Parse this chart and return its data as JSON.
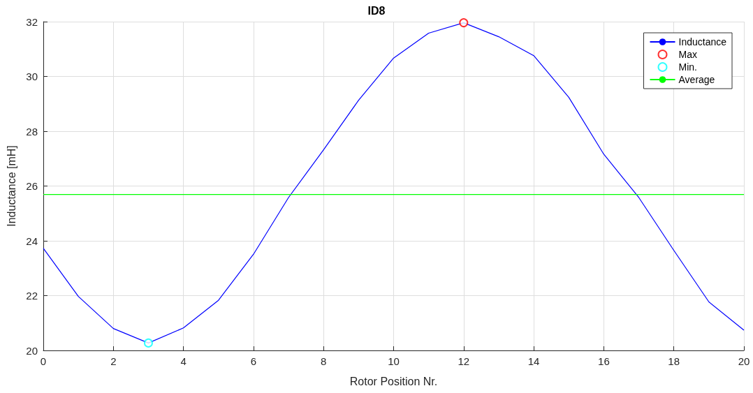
{
  "chart_data": {
    "type": "line",
    "title": "ID8",
    "xlabel": "Rotor Position Nr.",
    "ylabel": "Inductance [mH]",
    "xlim": [
      0,
      20
    ],
    "xticks": [
      0,
      2,
      4,
      6,
      8,
      10,
      12,
      14,
      16,
      18,
      20
    ],
    "ylim": [
      20,
      32
    ],
    "yticks": [
      20,
      22,
      24,
      26,
      28,
      30,
      32
    ],
    "grid": true,
    "legend": "top right",
    "series": [
      {
        "name": "Inductance",
        "color": "#0000ff",
        "marker": "none",
        "x": [
          0,
          1,
          2,
          3,
          4,
          5,
          6,
          7,
          8,
          9,
          10,
          11,
          12,
          13,
          14,
          15,
          16,
          17,
          18,
          19,
          20
        ],
        "values": [
          23.73,
          21.97,
          20.8,
          20.27,
          20.82,
          21.83,
          23.51,
          25.58,
          27.32,
          29.13,
          30.67,
          31.58,
          31.96,
          31.45,
          30.76,
          29.24,
          27.16,
          25.58,
          23.65,
          21.77,
          20.74
        ]
      },
      {
        "name": "Max",
        "type": "scatter",
        "color": "#ff0000",
        "marker": "circle",
        "x": [
          12
        ],
        "values": [
          31.96
        ]
      },
      {
        "name": "Min.",
        "type": "scatter",
        "color": "#00ffff",
        "marker": "circle",
        "x": [
          3
        ],
        "values": [
          20.27
        ]
      },
      {
        "name": "Average",
        "color": "#00ff00",
        "marker": "none",
        "x": [
          0,
          20
        ],
        "values": [
          25.69,
          25.69
        ]
      }
    ]
  }
}
